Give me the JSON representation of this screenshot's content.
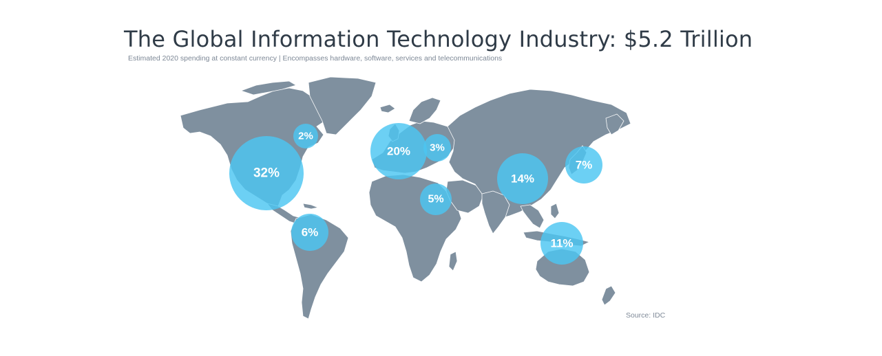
{
  "title": "The Global Information Technology Industry: $5.2 Trillion",
  "subtitle": "Estimated 2020 spending at constant currency | Encompasses hardware, software, services and telecommunications",
  "source": "Source: IDC",
  "colors": {
    "land": "#7f909f",
    "bubble": "#4cc6f2",
    "title": "#2f3b47"
  },
  "regions": [
    {
      "id": "north-america",
      "label": "32%",
      "share": 32
    },
    {
      "id": "canada",
      "label": "2%",
      "share": 2
    },
    {
      "id": "latin-america",
      "label": "6%",
      "share": 6
    },
    {
      "id": "western-europe",
      "label": "20%",
      "share": 20
    },
    {
      "id": "central-eastern-europe",
      "label": "3%",
      "share": 3
    },
    {
      "id": "middle-east-africa",
      "label": "5%",
      "share": 5
    },
    {
      "id": "china",
      "label": "14%",
      "share": 14
    },
    {
      "id": "japan",
      "label": "7%",
      "share": 7
    },
    {
      "id": "asia-pacific",
      "label": "11%",
      "share": 11
    }
  ]
}
